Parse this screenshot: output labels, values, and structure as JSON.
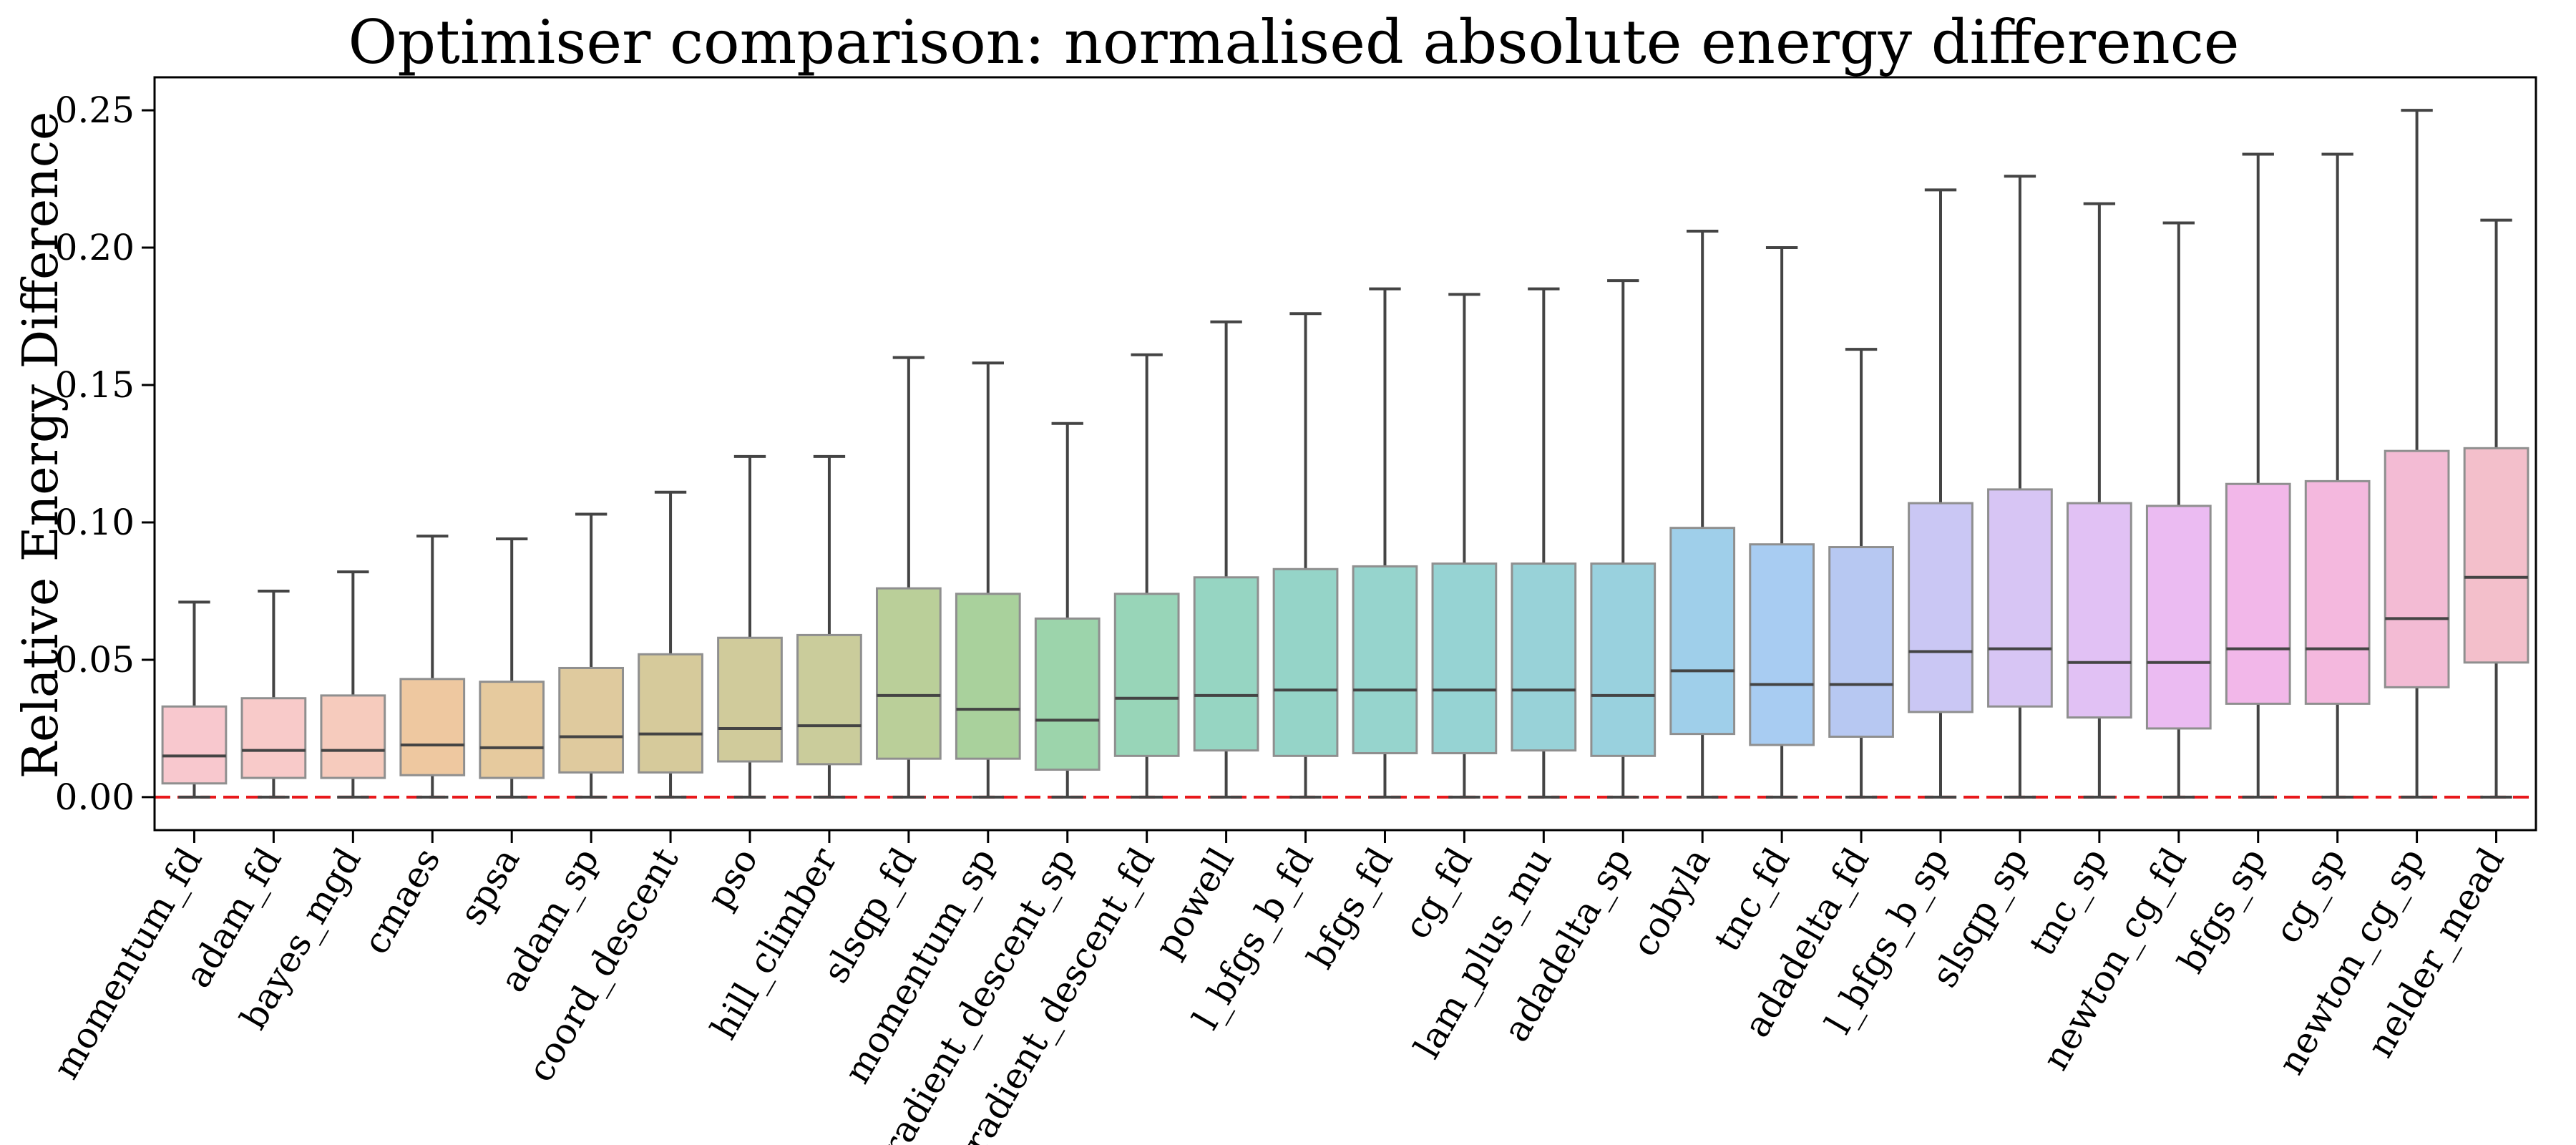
{
  "chart_data": {
    "type": "box",
    "title": "Optimiser comparison: normalised absolute energy difference",
    "xlabel": "",
    "ylabel": "Relative Energy Difference",
    "ylim": [
      -0.012,
      0.262
    ],
    "yticks": [
      0.0,
      0.05,
      0.1,
      0.15,
      0.2,
      0.25
    ],
    "ytick_labels": [
      "0.00",
      "0.05",
      "0.10",
      "0.15",
      "0.20",
      "0.25"
    ],
    "reference_line": {
      "y": 0.0,
      "color": "#e8191c",
      "style": "dashed"
    },
    "grid": false,
    "legend": "none",
    "categories": [
      "momentum_fd",
      "adam_fd",
      "bayes_mgd",
      "cmaes",
      "spsa",
      "adam_sp",
      "coord_descent",
      "pso",
      "hill_climber",
      "slsqp_fd",
      "momentum_sp",
      "gradient_descent_sp",
      "gradient_descent_fd",
      "powell",
      "l_bfgs_b_fd",
      "bfgs_fd",
      "cg_fd",
      "lam_plus_mu",
      "adadelta_sp",
      "cobyla",
      "tnc_fd",
      "adadelta_fd",
      "l_bfgs_b_sp",
      "slsqp_sp",
      "tnc_sp",
      "newton_cg_fd",
      "bfgs_sp",
      "cg_sp",
      "newton_cg_sp",
      "nelder_mead"
    ],
    "boxes": [
      {
        "min": 0.0,
        "q1": 0.005,
        "median": 0.015,
        "q3": 0.033,
        "max": 0.071,
        "color": "#f4a6b0"
      },
      {
        "min": 0.0,
        "q1": 0.007,
        "median": 0.017,
        "q3": 0.036,
        "max": 0.075,
        "color": "#f4a9a8"
      },
      {
        "min": 0.0,
        "q1": 0.007,
        "median": 0.017,
        "q3": 0.037,
        "max": 0.082,
        "color": "#f1ab95"
      },
      {
        "min": 0.0,
        "q1": 0.008,
        "median": 0.019,
        "q3": 0.043,
        "max": 0.095,
        "color": "#e4a765"
      },
      {
        "min": 0.0,
        "q1": 0.007,
        "median": 0.018,
        "q3": 0.042,
        "max": 0.094,
        "color": "#d7aa63"
      },
      {
        "min": 0.0,
        "q1": 0.009,
        "median": 0.022,
        "q3": 0.047,
        "max": 0.103,
        "color": "#ccaa63"
      },
      {
        "min": 0.0,
        "q1": 0.009,
        "median": 0.023,
        "q3": 0.052,
        "max": 0.111,
        "color": "#bdaa5e"
      },
      {
        "min": 0.0,
        "q1": 0.013,
        "median": 0.025,
        "q3": 0.058,
        "max": 0.124,
        "color": "#b3ab5e"
      },
      {
        "min": 0.0,
        "q1": 0.012,
        "median": 0.026,
        "q3": 0.059,
        "max": 0.124,
        "color": "#a9ad5e"
      },
      {
        "min": 0.0,
        "q1": 0.014,
        "median": 0.037,
        "q3": 0.076,
        "max": 0.16,
        "color": "#8fb25a"
      },
      {
        "min": 0.0,
        "q1": 0.014,
        "median": 0.032,
        "q3": 0.074,
        "max": 0.158,
        "color": "#74b45f"
      },
      {
        "min": 0.0,
        "q1": 0.01,
        "median": 0.028,
        "q3": 0.065,
        "max": 0.136,
        "color": "#5fba77"
      },
      {
        "min": 0.0,
        "q1": 0.015,
        "median": 0.036,
        "q3": 0.074,
        "max": 0.161,
        "color": "#58bb8d"
      },
      {
        "min": 0.0,
        "q1": 0.017,
        "median": 0.037,
        "q3": 0.08,
        "max": 0.173,
        "color": "#55bb9c"
      },
      {
        "min": 0.0,
        "q1": 0.015,
        "median": 0.039,
        "q3": 0.083,
        "max": 0.176,
        "color": "#54baa7"
      },
      {
        "min": 0.0,
        "q1": 0.016,
        "median": 0.039,
        "q3": 0.084,
        "max": 0.185,
        "color": "#55b9af"
      },
      {
        "min": 0.0,
        "q1": 0.016,
        "median": 0.039,
        "q3": 0.085,
        "max": 0.183,
        "color": "#56b8b8"
      },
      {
        "min": 0.0,
        "q1": 0.017,
        "median": 0.039,
        "q3": 0.085,
        "max": 0.185,
        "color": "#58b7c0"
      },
      {
        "min": 0.0,
        "q1": 0.015,
        "median": 0.037,
        "q3": 0.085,
        "max": 0.188,
        "color": "#5bb5c9"
      },
      {
        "min": 0.0,
        "q1": 0.023,
        "median": 0.046,
        "q3": 0.098,
        "max": 0.206,
        "color": "#64b2dd"
      },
      {
        "min": 0.0,
        "q1": 0.019,
        "median": 0.041,
        "q3": 0.092,
        "max": 0.2,
        "color": "#72adea"
      },
      {
        "min": 0.0,
        "q1": 0.022,
        "median": 0.041,
        "q3": 0.091,
        "max": 0.163,
        "color": "#8aa6ea"
      },
      {
        "min": 0.0,
        "q1": 0.031,
        "median": 0.053,
        "q3": 0.107,
        "max": 0.221,
        "color": "#aaa5ee"
      },
      {
        "min": 0.0,
        "q1": 0.033,
        "median": 0.054,
        "q3": 0.112,
        "max": 0.226,
        "color": "#bea1ee"
      },
      {
        "min": 0.0,
        "q1": 0.029,
        "median": 0.049,
        "q3": 0.107,
        "max": 0.216,
        "color": "#cf9bee"
      },
      {
        "min": 0.0,
        "q1": 0.025,
        "median": 0.049,
        "q3": 0.106,
        "max": 0.209,
        "color": "#df92ea"
      },
      {
        "min": 0.0,
        "q1": 0.034,
        "median": 0.054,
        "q3": 0.114,
        "max": 0.234,
        "color": "#ea8adb"
      },
      {
        "min": 0.0,
        "q1": 0.034,
        "median": 0.054,
        "q3": 0.115,
        "max": 0.234,
        "color": "#ed8dca"
      },
      {
        "min": 0.0,
        "q1": 0.04,
        "median": 0.065,
        "q3": 0.126,
        "max": 0.25,
        "color": "#ec91b9"
      },
      {
        "min": 0.0,
        "q1": 0.049,
        "median": 0.08,
        "q3": 0.127,
        "max": 0.21,
        "color": "#eb97ab"
      }
    ]
  }
}
